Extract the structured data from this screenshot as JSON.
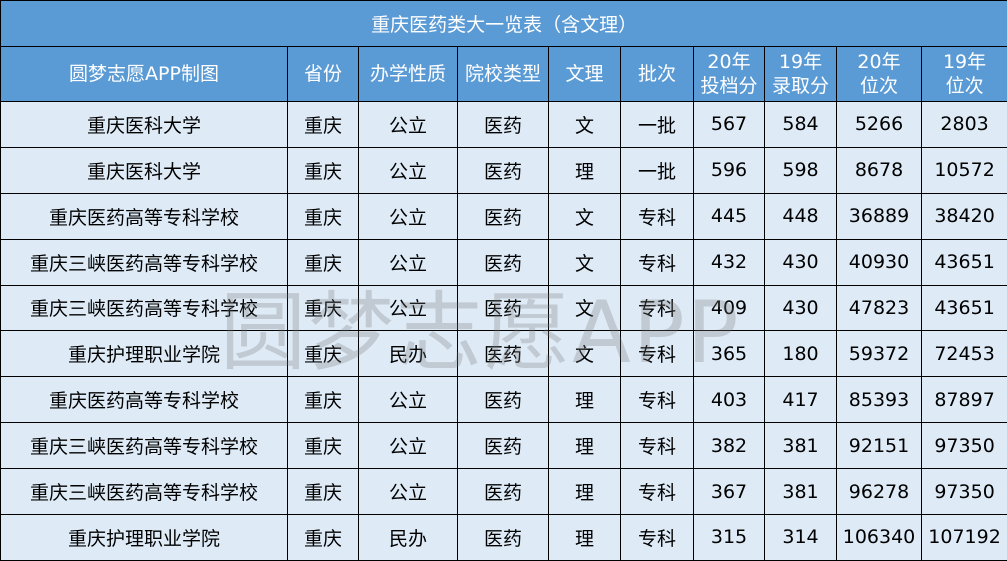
{
  "title": "重庆医药类大一览表（含文理）",
  "watermark": "圆梦志愿APP",
  "colors": {
    "header_bg": "#5b9bd5",
    "row_bg": "#deebf7",
    "header_text": "#ffffff"
  },
  "headers": [
    "圆梦志愿APP制图",
    "省份",
    "办学性质",
    "院校类型",
    "文理",
    "批次",
    "20年\n投档分",
    "19年\n录取分",
    "20年\n位次",
    "19年\n位次"
  ],
  "rows": [
    [
      "重庆医科大学",
      "重庆",
      "公立",
      "医药",
      "文",
      "一批",
      "567",
      "584",
      "5266",
      "2803"
    ],
    [
      "重庆医科大学",
      "重庆",
      "公立",
      "医药",
      "理",
      "一批",
      "596",
      "598",
      "8678",
      "10572"
    ],
    [
      "重庆医药高等专科学校",
      "重庆",
      "公立",
      "医药",
      "文",
      "专科",
      "445",
      "448",
      "36889",
      "38420"
    ],
    [
      "重庆三峡医药高等专科学校",
      "重庆",
      "公立",
      "医药",
      "文",
      "专科",
      "432",
      "430",
      "40930",
      "43651"
    ],
    [
      "重庆三峡医药高等专科学校",
      "重庆",
      "公立",
      "医药",
      "文",
      "专科",
      "409",
      "430",
      "47823",
      "43651"
    ],
    [
      "重庆护理职业学院",
      "重庆",
      "民办",
      "医药",
      "文",
      "专科",
      "365",
      "180",
      "59372",
      "72453"
    ],
    [
      "重庆医药高等专科学校",
      "重庆",
      "公立",
      "医药",
      "理",
      "专科",
      "403",
      "417",
      "85393",
      "87897"
    ],
    [
      "重庆三峡医药高等专科学校",
      "重庆",
      "公立",
      "医药",
      "理",
      "专科",
      "382",
      "381",
      "92151",
      "97350"
    ],
    [
      "重庆三峡医药高等专科学校",
      "重庆",
      "公立",
      "医药",
      "理",
      "专科",
      "367",
      "381",
      "96278",
      "97350"
    ],
    [
      "重庆护理职业学院",
      "重庆",
      "民办",
      "医药",
      "理",
      "专科",
      "315",
      "314",
      "106340",
      "107192"
    ]
  ]
}
